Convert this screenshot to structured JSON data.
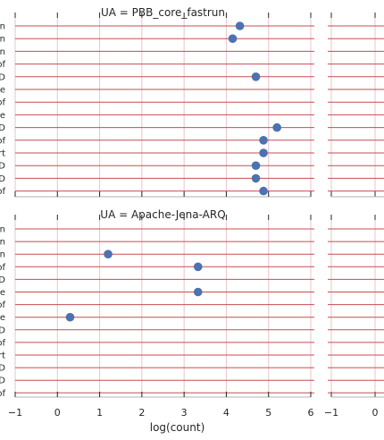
{
  "chart_data": [
    {
      "type": "scatter",
      "title": "UA = PBB_core_fastrun",
      "categories": [
        "n",
        "n",
        "n",
        "of",
        "D",
        "e",
        "of",
        "e",
        "D",
        "of",
        "rt",
        "D",
        "D",
        "of"
      ],
      "values": [
        4.32,
        4.15,
        null,
        null,
        4.7,
        null,
        null,
        null,
        5.2,
        4.88,
        4.88,
        4.7,
        4.7,
        4.88
      ],
      "xlabel": "",
      "xlim": [
        -1,
        6
      ],
      "xticks": [
        "−1",
        "0",
        "1",
        "2",
        "3",
        "4",
        "5",
        "6"
      ],
      "grid": true
    },
    {
      "type": "scatter",
      "title": "UA = Apache-Jena-ARQ",
      "categories": [
        "n",
        "n",
        "n",
        "of",
        "D",
        "e",
        "of",
        "e",
        "D",
        "of",
        "rt",
        "D",
        "D",
        "of"
      ],
      "values": [
        null,
        null,
        1.2,
        3.33,
        null,
        3.33,
        null,
        0.3,
        null,
        null,
        null,
        null,
        null,
        null
      ],
      "xlabel": "log(count)",
      "xlim": [
        -1,
        6
      ],
      "xticks": [
        "−1",
        "0",
        "1",
        "2",
        "3",
        "4",
        "5",
        "6"
      ],
      "grid": true
    }
  ],
  "side_panel": {
    "xticks": [
      "−1",
      "0"
    ]
  },
  "colors": {
    "point": "#4c72b0",
    "row_line": "#c44e52",
    "grid": "#e8c6c8"
  }
}
